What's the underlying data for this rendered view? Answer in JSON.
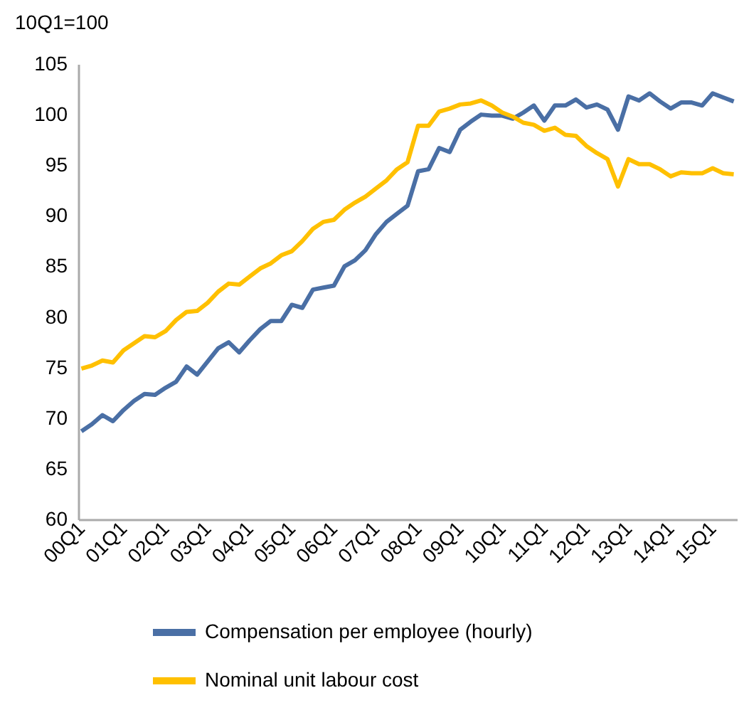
{
  "chart_data": {
    "type": "line",
    "ylabel": "10Q1=100",
    "categories": [
      "00Q1",
      null,
      null,
      null,
      "01Q1",
      null,
      null,
      null,
      "02Q1",
      null,
      null,
      null,
      "03Q1",
      null,
      null,
      null,
      "04Q1",
      null,
      null,
      null,
      "05Q1",
      null,
      null,
      null,
      "06Q1",
      null,
      null,
      null,
      "07Q1",
      null,
      null,
      null,
      "08Q1",
      null,
      null,
      null,
      "09Q1",
      null,
      null,
      null,
      "10Q1",
      null,
      null,
      null,
      "11Q1",
      null,
      null,
      null,
      "12Q1",
      null,
      null,
      null,
      "13Q1",
      null,
      null,
      null,
      "14Q1",
      null,
      null,
      null,
      "15Q1",
      null,
      null
    ],
    "series": [
      {
        "name": "Compensation per employee (hourly)",
        "color": "#4a6fa5",
        "values": [
          68.7,
          69.4,
          70.3,
          69.7,
          70.8,
          71.7,
          72.4,
          72.3,
          73.0,
          73.6,
          75.1,
          74.3,
          75.6,
          76.9,
          77.5,
          76.5,
          77.7,
          78.8,
          79.6,
          79.6,
          81.2,
          80.9,
          82.7,
          82.9,
          83.1,
          85.0,
          85.6,
          86.6,
          88.2,
          89.4,
          90.2,
          91.0,
          94.4,
          94.6,
          96.7,
          96.3,
          98.5,
          99.3,
          100.0,
          99.9,
          99.9,
          99.6,
          100.2,
          100.9,
          99.4,
          100.9,
          100.9,
          101.5,
          100.7,
          101.0,
          100.5,
          98.5,
          101.8,
          101.4,
          102.1,
          101.3,
          100.6,
          101.2,
          101.2,
          100.9,
          102.1,
          101.7,
          101.3
        ]
      },
      {
        "name": "Nominal unit labour cost",
        "color": "#ffc000",
        "values": [
          74.9,
          75.2,
          75.7,
          75.5,
          76.7,
          77.4,
          78.1,
          78.0,
          78.6,
          79.7,
          80.5,
          80.6,
          81.4,
          82.5,
          83.3,
          83.2,
          84.0,
          84.8,
          85.3,
          86.1,
          86.5,
          87.5,
          88.7,
          89.4,
          89.6,
          90.6,
          91.3,
          91.9,
          92.7,
          93.5,
          94.6,
          95.3,
          98.9,
          98.9,
          100.3,
          100.6,
          101.0,
          101.1,
          101.4,
          100.9,
          100.2,
          99.8,
          99.2,
          99.0,
          98.4,
          98.7,
          98.0,
          97.9,
          96.9,
          96.2,
          95.6,
          92.9,
          95.6,
          95.1,
          95.1,
          94.6,
          93.9,
          94.3,
          94.2,
          94.2,
          94.7,
          94.2,
          94.1
        ]
      }
    ],
    "ylim": [
      60,
      105
    ],
    "yticks": [
      60,
      65,
      70,
      75,
      80,
      85,
      90,
      95,
      100,
      105
    ],
    "grid": false,
    "legend": "bottom",
    "line_style": "solid",
    "marker": "none"
  }
}
